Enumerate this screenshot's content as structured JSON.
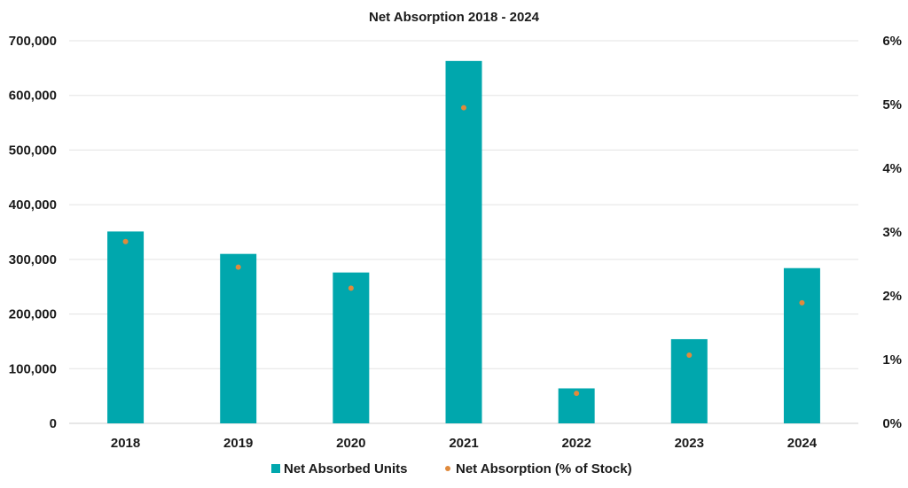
{
  "chart_data": {
    "type": "bar",
    "title": "Net Absorption 2018 - 2024",
    "categories": [
      "2018",
      "2019",
      "2020",
      "2021",
      "2022",
      "2023",
      "2024"
    ],
    "series": [
      {
        "name": "Net Absorbed Units",
        "kind": "bar",
        "axis": "left",
        "color": "#00a7ad",
        "values": [
          351000,
          310000,
          276000,
          663000,
          64000,
          154000,
          284000
        ]
      },
      {
        "name": "Net Absorption (% of Stock)",
        "kind": "scatter",
        "axis": "right",
        "color": "#e08a3c",
        "values": [
          2.85,
          2.45,
          2.12,
          4.95,
          0.47,
          1.07,
          1.89
        ]
      }
    ],
    "y_left": {
      "ylim": [
        0,
        700000
      ],
      "tick_values": [
        0,
        100000,
        200000,
        300000,
        400000,
        500000,
        600000,
        700000
      ],
      "tick_labels": [
        "0",
        "100,000",
        "200,000",
        "300,000",
        "400,000",
        "500,000",
        "600,000",
        "700,000"
      ]
    },
    "y_right": {
      "ylim": [
        0,
        6
      ],
      "tick_values": [
        0,
        1,
        2,
        3,
        4,
        5,
        6
      ],
      "tick_labels": [
        "0%",
        "1%",
        "2%",
        "3%",
        "4%",
        "5%",
        "6%"
      ]
    },
    "grid": true,
    "legend": "bottom-center"
  }
}
